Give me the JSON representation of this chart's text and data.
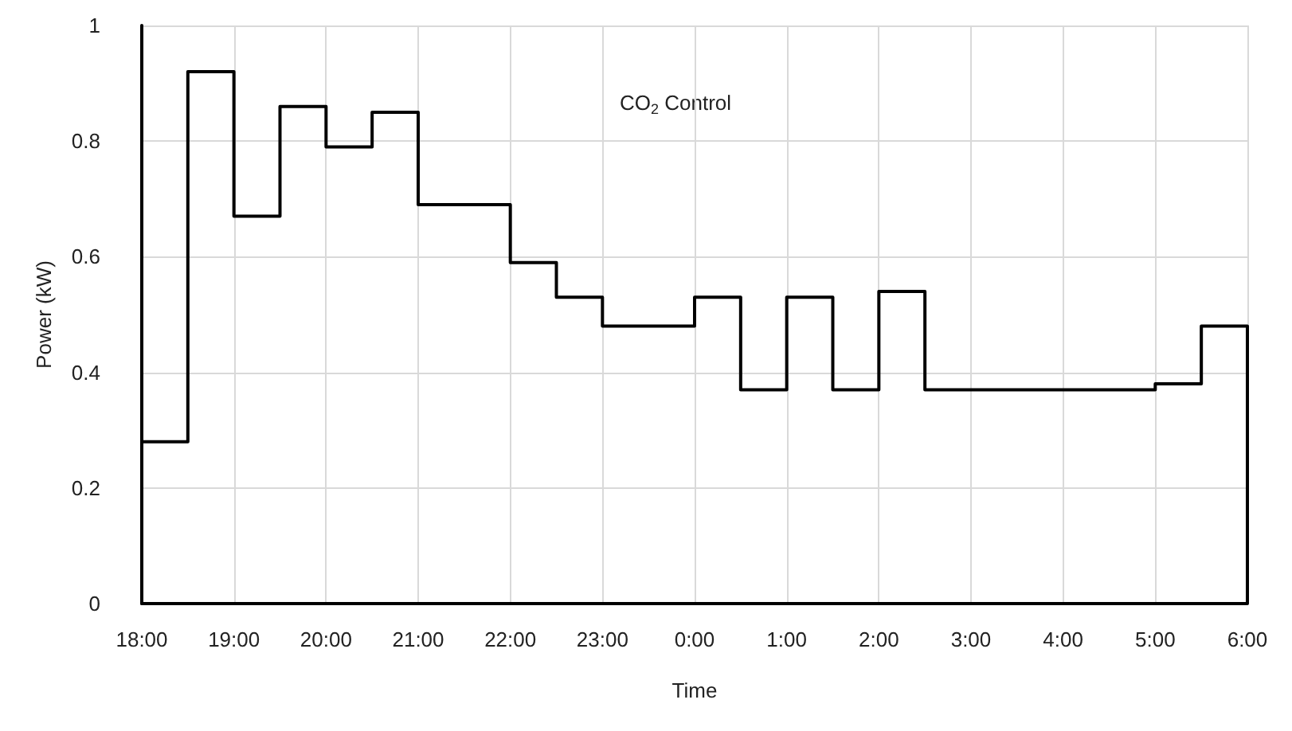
{
  "chart_data": {
    "type": "step",
    "xlabel": "Time",
    "ylabel": "Power (kW)",
    "annotations": [
      "CO$_{2}$ Control"
    ],
    "x": [
      "--01-01T18:00",
      "--01-01T18:00",
      "--01-01T18:30",
      "--01-01T19:00",
      "--01-01T19:30",
      "--01-01T20:00",
      "--01-01T20:30",
      "--01-01T21:00",
      "--01-01T22:00",
      "--01-01T22:30",
      "--01-01T23:00",
      "--01-02T00:00",
      "--01-02T00:30",
      "--01-02T01:00",
      "--01-02T01:30",
      "--01-02T02:00",
      "--01-02T02:30",
      "--01-02T05:00",
      "--01-02T05:30",
      "--01-02T06:00",
      "--01-02T06:00"
    ],
    "series": [
      {
        "color": "#000000",
        "values": [
          0,
          0.28,
          0.92,
          0.67,
          0.86,
          0.79,
          0.85,
          0.69,
          0.59,
          0.53,
          0.48,
          0.53,
          0.37,
          0.53,
          0.37,
          0.54,
          0.37,
          0.38,
          0.48,
          0.48,
          0
        ]
      }
    ],
    "xlim": [
      "--01-01T18:00",
      "--01-02T06:00"
    ],
    "xticks": [
      {
        "value": "--01-01T18:00",
        "label": "18:00"
      },
      {
        "value": "--01-01T19:00",
        "label": "19:00"
      },
      {
        "value": "--01-01T20:00",
        "label": "20:00"
      },
      {
        "value": "--01-01T21:00",
        "label": "21:00"
      },
      {
        "value": "--01-01T22:00",
        "label": "22:00"
      },
      {
        "value": "--01-01T23:00",
        "label": "23:00"
      },
      {
        "value": "--01-02T00:00",
        "label": "0:00"
      },
      {
        "value": "--01-02T01:00",
        "label": "1:00"
      },
      {
        "value": "--01-02T02:00",
        "label": "2:00"
      },
      {
        "value": "--01-02T03:00",
        "label": "3:00"
      },
      {
        "value": "--01-02T04:00",
        "label": "4:00"
      },
      {
        "value": "--01-02T05:00",
        "label": "5:00"
      },
      {
        "value": "--01-02T06:00",
        "label": "6:00"
      }
    ],
    "ylim": [
      0,
      1
    ],
    "yticks": [
      0,
      0.2,
      0.4,
      0.6,
      0.8,
      1
    ],
    "grid": true,
    "marker": "none",
    "line_style": "solid"
  }
}
